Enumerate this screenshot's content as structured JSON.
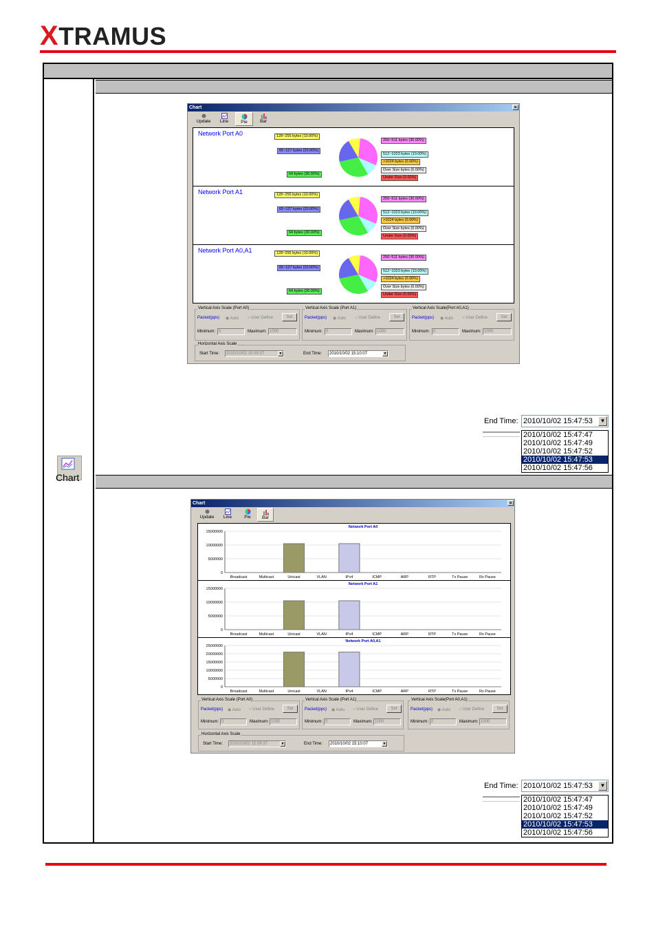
{
  "brand": {
    "logo_x": "X",
    "logo_rest": "TRAMUS",
    "accent": "#e2001a"
  },
  "launcher": {
    "label": "Chart",
    "icon": "chart-line-icon"
  },
  "pie_window": {
    "title": "Chart",
    "close": "×",
    "toolbar": [
      {
        "label": "Update",
        "icon": "update-icon"
      },
      {
        "label": "Line",
        "icon": "line-chart-icon"
      },
      {
        "label": "Pie",
        "icon": "pie-chart-icon"
      },
      {
        "label": "Bar",
        "icon": "bar-chart-icon"
      }
    ],
    "panels": [
      {
        "title": "Network Port A0"
      },
      {
        "title": "Network Port A1"
      },
      {
        "title": "Network Port A0,A1"
      }
    ],
    "slice_labels": {
      "s128": "128~255 bytes (10.00%)",
      "s65": "65~127 bytes (20.00%)",
      "s64": "64 bytes (30.00%)",
      "s256": "256~511 bytes (30.00%)",
      "s512": "512~1023 bytes (10.00%)",
      "s1024": ">1024 bytes (0.00%)",
      "sover": "Over Size bytes (0.00%)",
      "sunder": "Under-Size (0.00%)"
    },
    "vgroups": [
      {
        "title": "Vertical Axis Scale (Port A0)",
        "packet": "Packet(pps)",
        "auto": "Auto",
        "user": "User Define",
        "set": "Set",
        "min_label": "Minimum:",
        "min": "0",
        "max_label": "Maximum:",
        "max": "1000"
      },
      {
        "title": "Vertical Axis Scale (Port A1)",
        "packet": "Packet(pps)",
        "auto": "Auto",
        "user": "User Define",
        "set": "Set",
        "min_label": "Minimum:",
        "min": "0",
        "max_label": "Maximum:",
        "max": "1000"
      },
      {
        "title": "Vertical Axis Scale(Port A0,A1)",
        "packet": "Packet(pps)",
        "auto": "Auto",
        "user": "User Define",
        "set": "Set",
        "min_label": "Minimum:",
        "min": "0",
        "max_label": "Maximum:",
        "max": "1000"
      }
    ],
    "hgroup": {
      "title": "Horizontal Axis Scale",
      "start_label": "Start Time:",
      "start": "2010/10/02 15:09:37",
      "end_label": "End Time:",
      "end": "2010/10/02 15:10:07"
    }
  },
  "end_time_dropdown_1": {
    "label": "End Time:",
    "value": "2010/10/02 15:47:53",
    "options": [
      "2010/10/02 15:47:47",
      "2010/10/02 15:47:49",
      "2010/10/02 15:47:52",
      "2010/10/02 15:47:53",
      "2010/10/02 15:47:56"
    ],
    "selected": 3
  },
  "bar_window": {
    "title": "Chart",
    "close": "×",
    "toolbar": [
      {
        "label": "Update",
        "icon": "update-icon"
      },
      {
        "label": "Line",
        "icon": "line-chart-icon"
      },
      {
        "label": "Pie",
        "icon": "pie-chart-icon"
      },
      {
        "label": "Bar",
        "icon": "bar-chart-icon"
      }
    ],
    "vgroups": [
      {
        "title": "Vertical Axis Scale (Port A0)",
        "packet": "Packet(pps)",
        "auto": "Auto",
        "user": "User Define",
        "set": "Set",
        "min_label": "Minimum:",
        "min": "0",
        "max_label": "Maximum:",
        "max": "1000"
      },
      {
        "title": "Vertical Axis Scale (Port A1)",
        "packet": "Packet(pps)",
        "auto": "Auto",
        "user": "User Define",
        "set": "Set",
        "min_label": "Minimum:",
        "min": "0",
        "max_label": "Maximum:",
        "max": "1000"
      },
      {
        "title": "Vertical Axis Scale(Port A0,A1)",
        "packet": "Packet(pps)",
        "auto": "Auto",
        "user": "User Define",
        "set": "Set",
        "min_label": "Minimum:",
        "min": "0",
        "max_label": "Maximum:",
        "max": "1000"
      }
    ],
    "hgroup": {
      "title": "Horizontal Axis Scale",
      "start_label": "Start Time:",
      "start": "2010/10/02 15:09:37",
      "end_label": "End Time:",
      "end": "2010/10/02 15:10:07"
    }
  },
  "end_time_dropdown_2": {
    "label": "End Time:",
    "value": "2010/10/02 15:47:53",
    "options": [
      "2010/10/02 15:47:47",
      "2010/10/02 15:47:49",
      "2010/10/02 15:47:52",
      "2010/10/02 15:47:53",
      "2010/10/02 15:47:56"
    ],
    "selected": 3
  },
  "chart_data": [
    {
      "type": "pie",
      "title": "Network Port A0",
      "categories": [
        "64 bytes",
        "65~127 bytes",
        "128~255 bytes",
        "256~511 bytes",
        "512~1023 bytes",
        ">1024 bytes",
        "Over Size bytes",
        "Under-Size"
      ],
      "values": [
        30,
        20,
        10,
        30,
        10,
        0,
        0,
        0
      ],
      "colors": [
        "#44ee44",
        "#6666ee",
        "#ffff44",
        "#ff66ff",
        "#aaffff",
        "#ffcc33",
        "#dddddd",
        "#ff4444"
      ]
    },
    {
      "type": "pie",
      "title": "Network Port A1",
      "categories": [
        "64 bytes",
        "65~127 bytes",
        "128~255 bytes",
        "256~511 bytes",
        "512~1023 bytes",
        ">1024 bytes",
        "Over Size bytes",
        "Under-Size"
      ],
      "values": [
        30,
        20,
        10,
        30,
        10,
        0,
        0,
        0
      ],
      "colors": [
        "#44ee44",
        "#6666ee",
        "#ffff44",
        "#ff66ff",
        "#aaffff",
        "#ffcc33",
        "#dddddd",
        "#ff4444"
      ]
    },
    {
      "type": "pie",
      "title": "Network Port A0,A1",
      "categories": [
        "64 bytes",
        "65~127 bytes",
        "128~255 bytes",
        "256~511 bytes",
        "512~1023 bytes",
        ">1024 bytes",
        "Over Size bytes",
        "Under-Size"
      ],
      "values": [
        30,
        20,
        10,
        30,
        10,
        0,
        0,
        0
      ],
      "colors": [
        "#44ee44",
        "#6666ee",
        "#ffff44",
        "#ff66ff",
        "#aaffff",
        "#ffcc33",
        "#dddddd",
        "#ff4444"
      ]
    },
    {
      "type": "bar",
      "title": "Network Port A0",
      "categories": [
        "Broadcast",
        "Multicast",
        "Unicast",
        "VLAN",
        "IPv4",
        "ICMP",
        "ARP",
        "RTP",
        "Tx Pause",
        "Rx Pause"
      ],
      "values": [
        0,
        0,
        10500000,
        0,
        10500000,
        0,
        0,
        0,
        0,
        0
      ],
      "yticks": [
        "15000000",
        "10000000",
        "5000000",
        "0"
      ],
      "ylim": [
        0,
        15000000
      ]
    },
    {
      "type": "bar",
      "title": "Network Port A1",
      "categories": [
        "Broadcast",
        "Multicast",
        "Unicast",
        "VLAN",
        "IPv4",
        "ICMP",
        "ARP",
        "RTP",
        "Tx Pause",
        "Rx Pause"
      ],
      "values": [
        0,
        0,
        10500000,
        0,
        10500000,
        0,
        0,
        0,
        0,
        0
      ],
      "yticks": [
        "15000000",
        "10000000",
        "5000000",
        "0"
      ],
      "ylim": [
        0,
        15000000
      ]
    },
    {
      "type": "bar",
      "title": "Network Port A0,A1",
      "categories": [
        "Broadcast",
        "Multicast",
        "Unicast",
        "VLAN",
        "IPv4",
        "ICMP",
        "ARP",
        "RTP",
        "Tx Pause",
        "Rx Pause"
      ],
      "values": [
        0,
        0,
        21000000,
        0,
        21000000,
        0,
        0,
        0,
        0,
        0
      ],
      "yticks": [
        "25000000",
        "20000000",
        "15000000",
        "10000000",
        "5000000",
        "0"
      ],
      "ylim": [
        0,
        25000000
      ]
    }
  ]
}
